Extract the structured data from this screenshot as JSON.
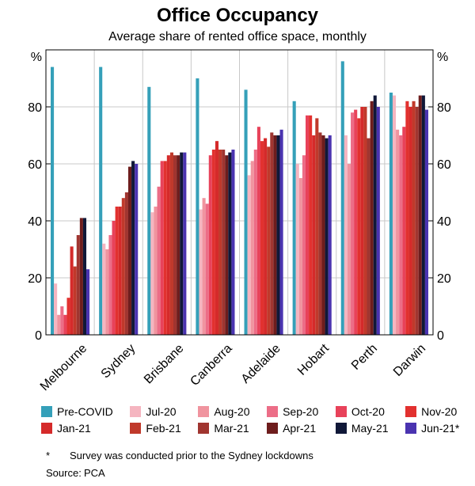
{
  "chart_data": {
    "type": "bar",
    "title": "Office Occupancy",
    "subtitle": "Average share of rented office space, monthly",
    "ylabel_left": "%",
    "ylabel_right": "%",
    "ylim": [
      0,
      100
    ],
    "yticks": [
      0,
      20,
      40,
      60,
      80
    ],
    "categories": [
      "Melbourne",
      "Sydney",
      "Brisbane",
      "Canberra",
      "Adelaide",
      "Hobart",
      "Perth",
      "Darwin"
    ],
    "series": [
      {
        "name": "Pre-COVID",
        "color": "#35a0b9",
        "values": [
          94,
          94,
          87,
          90,
          86,
          82,
          96,
          85
        ]
      },
      {
        "name": "Jul-20",
        "color": "#f5b5c0",
        "values": [
          18,
          32,
          43,
          44,
          56,
          60,
          70,
          84
        ]
      },
      {
        "name": "Aug-20",
        "color": "#f0949f",
        "values": [
          7,
          30,
          45,
          48,
          61,
          55,
          60,
          72
        ]
      },
      {
        "name": "Sep-20",
        "color": "#ec6d87",
        "values": [
          10,
          35,
          52,
          46,
          65,
          63,
          78,
          70
        ]
      },
      {
        "name": "Oct-20",
        "color": "#e8425a",
        "values": [
          7,
          40,
          61,
          63,
          73,
          77,
          79,
          73
        ]
      },
      {
        "name": "Nov-20",
        "color": "#e2312f",
        "values": [
          13,
          45,
          61,
          65,
          68,
          77,
          76,
          82
        ]
      },
      {
        "name": "Jan-21",
        "color": "#d52a2a",
        "values": [
          31,
          45,
          63,
          68,
          69,
          70,
          80,
          80
        ]
      },
      {
        "name": "Feb-21",
        "color": "#c0392b",
        "values": [
          24,
          48,
          64,
          65,
          66,
          76,
          80,
          82
        ]
      },
      {
        "name": "Mar-21",
        "color": "#a03530",
        "values": [
          35,
          50,
          63,
          65,
          71,
          71,
          69,
          80
        ]
      },
      {
        "name": "Apr-21",
        "color": "#6e1d1d",
        "values": [
          41,
          59,
          63,
          63,
          70,
          70,
          82,
          84
        ]
      },
      {
        "name": "May-21",
        "color": "#101838",
        "values": [
          41,
          61,
          64,
          64,
          70,
          69,
          84,
          84
        ]
      },
      {
        "name": "Jun-21*",
        "color": "#4a33b0",
        "values": [
          23,
          60,
          64,
          65,
          72,
          70,
          80,
          79
        ]
      }
    ]
  },
  "footnote": {
    "mark": "*",
    "text": "Survey was conducted prior to the Sydney lockdowns"
  },
  "source": {
    "label": "Source:",
    "text": "PCA"
  }
}
